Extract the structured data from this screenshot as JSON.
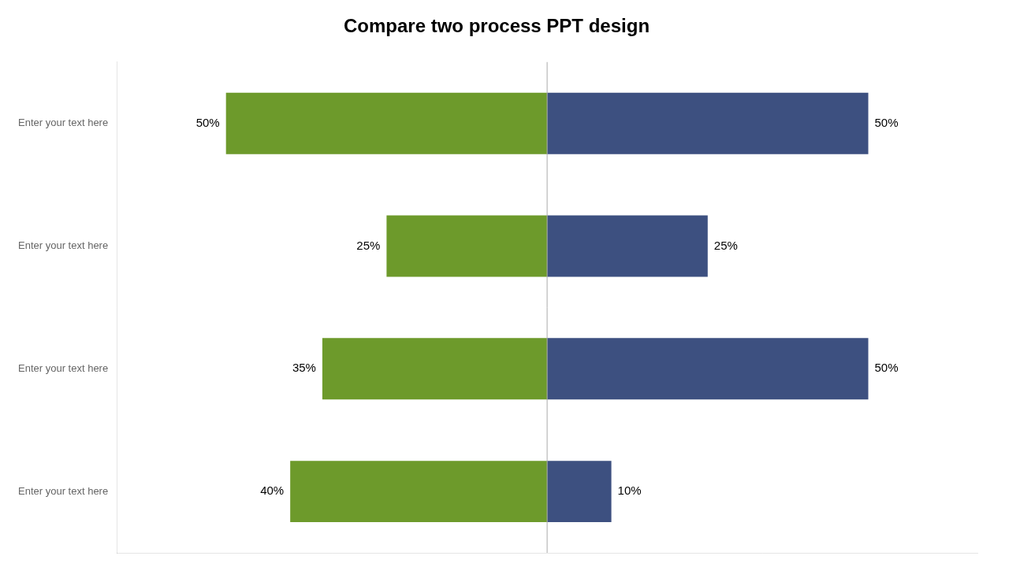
{
  "chart_data": {
    "type": "bar",
    "orientation": "horizontal",
    "title": "Compare two process PPT design",
    "categories": [
      "Enter your text here",
      "Enter your text here",
      "Enter your text here",
      "Enter your text here"
    ],
    "series": [
      {
        "color": "#6d9a2b",
        "values": [
          50,
          25,
          35,
          40
        ],
        "value_labels": [
          "50%",
          "25%",
          "35%",
          "40%"
        ]
      },
      {
        "color": "#3d5080",
        "values": [
          50,
          25,
          50,
          10
        ],
        "value_labels": [
          "50%",
          "25%",
          "50%",
          "10%"
        ]
      }
    ],
    "xlim": [
      -67,
      67
    ],
    "tick_labels": "y",
    "grid": false,
    "data_labels": true
  }
}
